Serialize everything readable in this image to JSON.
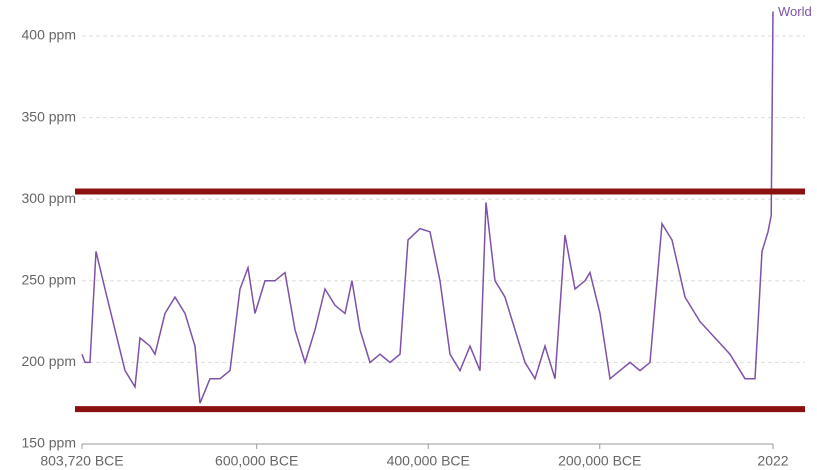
{
  "chart_data": {
    "type": "line",
    "x": [
      -803720,
      -800222,
      -794391,
      -787395,
      -776900,
      -765239,
      -753578,
      -741917,
      -736086,
      -724425,
      -718595,
      -706934,
      -695273,
      -683612,
      -671951,
      -666120,
      -654459,
      -642798,
      -631137,
      -619476,
      -610147,
      -601985,
      -590324,
      -578663,
      -567002,
      -555341,
      -543680,
      -532019,
      -520358,
      -508697,
      -497036,
      -488873,
      -479545,
      -467884,
      -456222,
      -444561,
      -432900,
      -423571,
      -409578,
      -397917,
      -386256,
      -374595,
      -362934,
      -351273,
      -339612,
      -332616,
      -322121,
      -310460,
      -298799,
      -287138,
      -275477,
      -263816,
      -252155,
      -240494,
      -228833,
      -217172,
      -211342,
      -199681,
      -188020,
      -176358,
      -164697,
      -153036,
      -141375,
      -127382,
      -115721,
      -100562,
      -83071,
      -65579,
      -48088,
      -30596,
      -18935,
      -10773,
      -3776,
      -100,
      2022
    ],
    "series": [
      {
        "name": "World",
        "color": "#7d52a8",
        "values": [
          205,
          200,
          200,
          268,
          245,
          220,
          195,
          185,
          215,
          210,
          205,
          230,
          240,
          230,
          210,
          175,
          190,
          190,
          195,
          245,
          258,
          230,
          250,
          250,
          255,
          220,
          200,
          220,
          245,
          235,
          230,
          250,
          220,
          200,
          205,
          200,
          205,
          275,
          282,
          280,
          250,
          205,
          195,
          210,
          195,
          298,
          250,
          240,
          220,
          200,
          190,
          210,
          190,
          278,
          245,
          250,
          255,
          230,
          190,
          195,
          200,
          195,
          200,
          285,
          275,
          240,
          225,
          215,
          205,
          190,
          190,
          268,
          280,
          290,
          415
        ]
      }
    ],
    "xlim": [
      -803720,
      2022
    ],
    "xticks": [
      {
        "value": -803720,
        "label": "803,720 BCE"
      },
      {
        "value": -600000,
        "label": "600,000 BCE"
      },
      {
        "value": -400000,
        "label": "400,000 BCE"
      },
      {
        "value": -200000,
        "label": "200,000 BCE"
      },
      2022
    ],
    "ylim": [
      150,
      415
    ],
    "yticks": [
      {
        "value": 150,
        "label": "150 ppm"
      },
      {
        "value": 200,
        "label": "200 ppm"
      },
      {
        "value": 250,
        "label": "250 ppm"
      },
      {
        "value": 300,
        "label": "300 ppm"
      },
      {
        "value": 350,
        "label": "350 ppm"
      },
      {
        "value": 400,
        "label": "400 ppm"
      }
    ],
    "grid": true,
    "reference_lines": [
      {
        "value": 304.7,
        "color": "#8b1111"
      },
      {
        "value": 171.4,
        "color": "#8b1111"
      }
    ]
  }
}
